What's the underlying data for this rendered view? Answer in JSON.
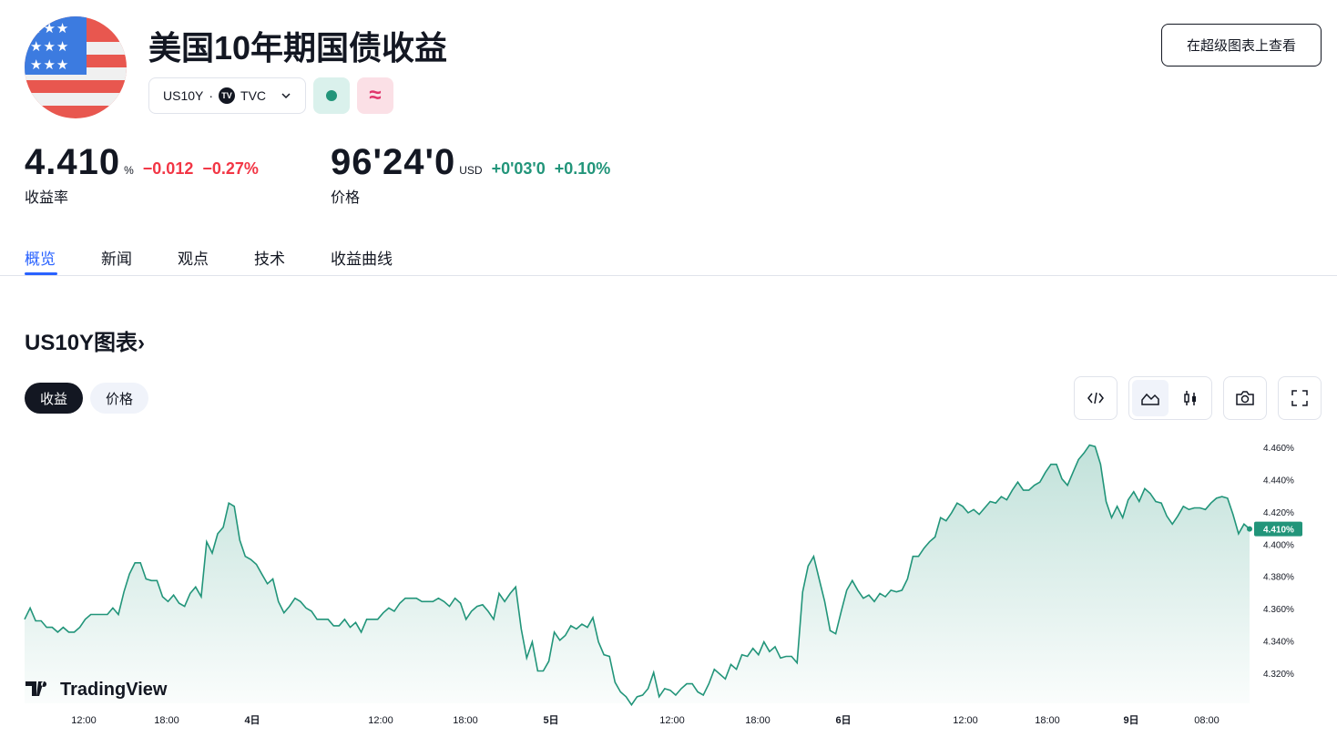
{
  "header": {
    "title": "美国10年期国债收益",
    "open_button": "在超级图表上查看",
    "symbol": "US10Y",
    "separator": "·",
    "exchange_logo": "TV",
    "exchange": "TVC",
    "market_status_icon": "dot-icon",
    "delay_icon": "approx-icon",
    "flag_icon": "us-flag-icon"
  },
  "quotes": {
    "yield": {
      "value": "4.410",
      "unit": "%",
      "change": "−0.012",
      "change_pct": "−0.27%",
      "label": "收益率"
    },
    "price": {
      "value": "96'24'0",
      "unit": "USD",
      "change": "+0'03'0",
      "change_pct": "+0.10%",
      "label": "价格"
    }
  },
  "tabs": [
    {
      "label": "概览",
      "active": true
    },
    {
      "label": "新闻"
    },
    {
      "label": "观点"
    },
    {
      "label": "技术"
    },
    {
      "label": "收益曲线"
    }
  ],
  "chart_section": {
    "title": "US10Y图表",
    "chevron": "›",
    "pills": [
      "收益",
      "价格"
    ],
    "tools": [
      "embed-icon",
      "area-chart-icon",
      "candles-icon",
      "camera-icon",
      "fullscreen-icon"
    ],
    "watermark": "TradingView"
  },
  "colors": {
    "line": "#22957a",
    "down": "#f23645",
    "up": "#22957a",
    "accent": "#2962ff"
  },
  "chart_data": {
    "type": "area",
    "ylim": [
      4.296,
      4.468
    ],
    "y_ticks": [
      "4.460%",
      "4.440%",
      "4.420%",
      "4.400%",
      "4.380%",
      "4.360%",
      "4.340%",
      "4.320%"
    ],
    "x_ticks": [
      "12:00",
      "18:00",
      "4日",
      "12:00",
      "18:00",
      "5日",
      "12:00",
      "18:00",
      "6日",
      "12:00",
      "18:00",
      "9日",
      "08:00"
    ],
    "last_value_label": "4.410%",
    "values": [
      4.354,
      4.361,
      4.353,
      4.353,
      4.349,
      4.349,
      4.346,
      4.349,
      4.346,
      4.346,
      4.349,
      4.354,
      4.357,
      4.357,
      4.357,
      4.357,
      4.361,
      4.357,
      4.371,
      4.382,
      4.389,
      4.389,
      4.379,
      4.378,
      4.378,
      4.368,
      4.365,
      4.369,
      4.364,
      4.362,
      4.37,
      4.374,
      4.368,
      4.402,
      4.395,
      4.407,
      4.411,
      4.426,
      4.424,
      4.403,
      4.393,
      4.391,
      4.388,
      4.382,
      4.376,
      4.379,
      4.365,
      4.358,
      4.362,
      4.367,
      4.365,
      4.361,
      4.359,
      4.354,
      4.354,
      4.354,
      4.35,
      4.35,
      4.354,
      4.349,
      4.352,
      4.346,
      4.354,
      4.354,
      4.354,
      4.358,
      4.361,
      4.359,
      4.364,
      4.367,
      4.367,
      4.367,
      4.365,
      4.365,
      4.365,
      4.367,
      4.365,
      4.362,
      4.367,
      4.364,
      4.354,
      4.359,
      4.362,
      4.363,
      4.359,
      4.354,
      4.37,
      4.365,
      4.37,
      4.374,
      4.348,
      4.33,
      4.34,
      4.322,
      4.322,
      4.328,
      4.346,
      4.341,
      4.344,
      4.35,
      4.348,
      4.351,
      4.349,
      4.355,
      4.34,
      4.332,
      4.331,
      4.315,
      4.309,
      4.306,
      4.301,
      4.306,
      4.307,
      4.311,
      4.321,
      4.306,
      4.311,
      4.31,
      4.307,
      4.311,
      4.314,
      4.314,
      4.309,
      4.307,
      4.314,
      4.323,
      4.32,
      4.317,
      4.326,
      4.323,
      4.332,
      4.331,
      4.336,
      4.332,
      4.34,
      4.334,
      4.337,
      4.33,
      4.331,
      4.331,
      4.327,
      4.371,
      4.387,
      4.393,
      4.379,
      4.365,
      4.347,
      4.345,
      4.359,
      4.372,
      4.378,
      4.372,
      4.367,
      4.369,
      4.365,
      4.37,
      4.368,
      4.372,
      4.371,
      4.372,
      4.379,
      4.393,
      4.393,
      4.398,
      4.402,
      4.405,
      4.417,
      4.415,
      4.42,
      4.426,
      4.424,
      4.42,
      4.422,
      4.419,
      4.423,
      4.427,
      4.426,
      4.43,
      4.428,
      4.434,
      4.439,
      4.434,
      4.434,
      4.437,
      4.439,
      4.445,
      4.45,
      4.45,
      4.441,
      4.437,
      4.445,
      4.453,
      4.457,
      4.462,
      4.461,
      4.45,
      4.427,
      4.417,
      4.424,
      4.417,
      4.428,
      4.433,
      4.427,
      4.435,
      4.432,
      4.427,
      4.426,
      4.418,
      4.413,
      4.418,
      4.424,
      4.422,
      4.423,
      4.423,
      4.422,
      4.426,
      4.429,
      4.43,
      4.429,
      4.419,
      4.407,
      4.413,
      4.41
    ]
  }
}
